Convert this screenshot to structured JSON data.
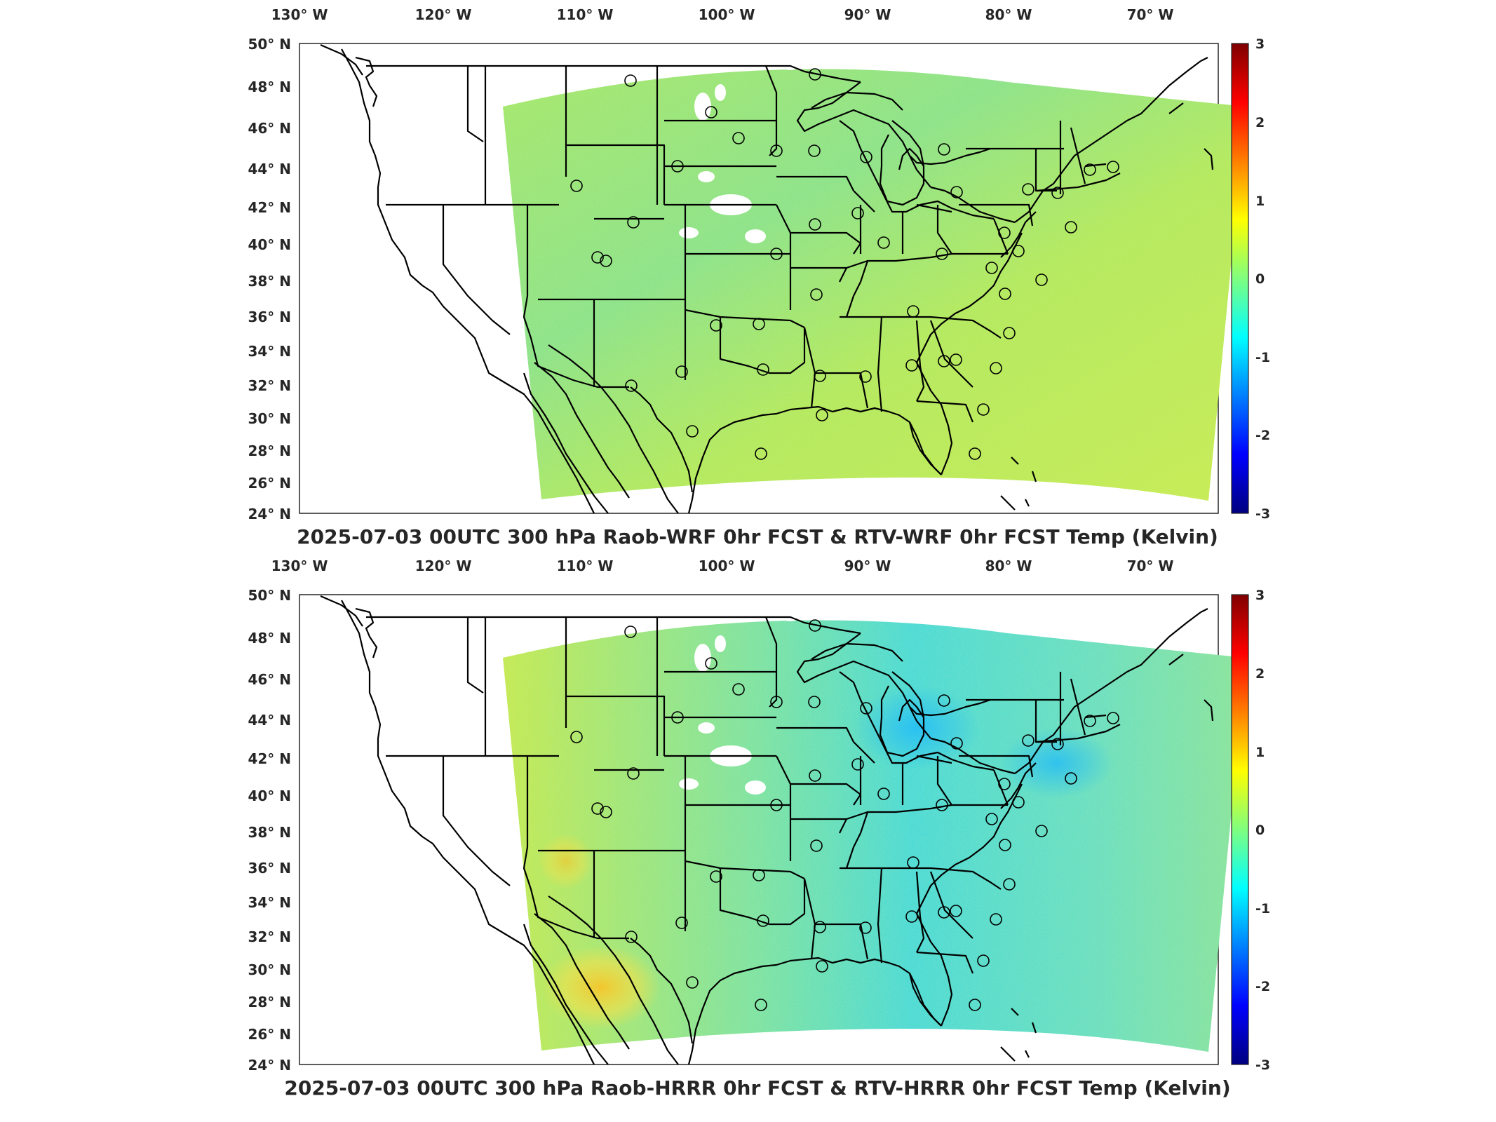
{
  "colors": {
    "background": "#ffffff",
    "axis": "#262626",
    "colormap": [
      "#00007f",
      "#0000ff",
      "#007fff",
      "#00ffff",
      "#7fff7f",
      "#ffff00",
      "#ff7f00",
      "#ff0000",
      "#7f0000"
    ]
  },
  "panels": [
    {
      "title": "2025-07-03 00UTC 300 hPa Raob-WRF 0hr FCST & RTV-WRF 0hr FCST Temp (Kelvin)",
      "lon_labels": [
        "130° W",
        "120° W",
        "110° W",
        "100° W",
        "90° W",
        "80° W",
        "70° W"
      ],
      "lat_labels": [
        "50° N",
        "48° N",
        "46° N",
        "44° N",
        "42° N",
        "40° N",
        "38° N",
        "36° N",
        "34° N",
        "32° N",
        "30° N",
        "28° N",
        "26° N",
        "24° N"
      ],
      "colorbar_ticks": [
        "3",
        "2",
        "1",
        "0",
        "-1",
        "-2",
        "-3"
      ],
      "colorbar_range": [
        -3,
        3
      ],
      "field_tone": "green-yellow"
    },
    {
      "title": "2025-07-03 00UTC 300 hPa Raob-HRRR 0hr FCST & RTV-HRRR 0hr FCST Temp (Kelvin)",
      "lon_labels": [
        "130° W",
        "120° W",
        "110° W",
        "100° W",
        "90° W",
        "80° W",
        "70° W"
      ],
      "lat_labels": [
        "50° N",
        "48° N",
        "46° N",
        "44° N",
        "42° N",
        "40° N",
        "38° N",
        "36° N",
        "34° N",
        "32° N",
        "30° N",
        "28° N",
        "26° N",
        "24° N"
      ],
      "colorbar_ticks": [
        "3",
        "2",
        "1",
        "0",
        "-1",
        "-2",
        "-3"
      ],
      "colorbar_range": [
        -3,
        3
      ],
      "field_tone": "cyan-yellow"
    }
  ]
}
